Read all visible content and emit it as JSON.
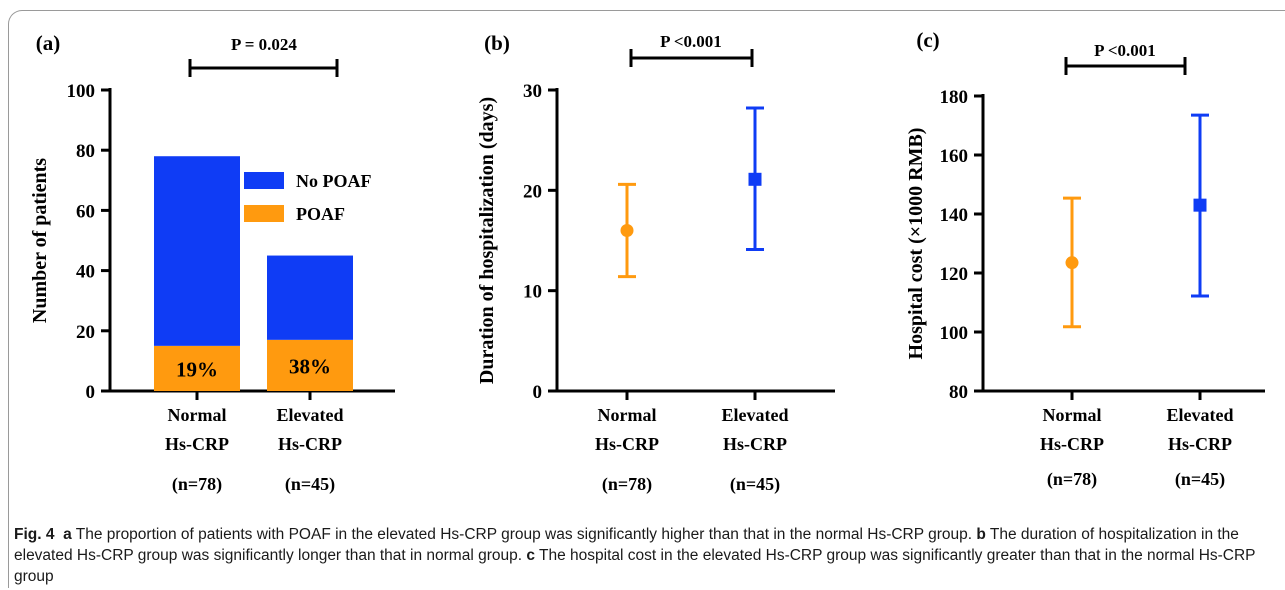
{
  "colors": {
    "blue": "#0f3cf5",
    "orange": "#ff9a0f",
    "frame": "#9a9a9a"
  },
  "chart_data": [
    {
      "type": "bar",
      "stacked": true,
      "panel_label": "(a)",
      "pvalue": "P = 0.024",
      "ylabel": "Number of  patients",
      "ylim": [
        0,
        100
      ],
      "yticks": [
        0,
        20,
        40,
        60,
        80,
        100
      ],
      "categories": [
        [
          "Normal",
          "Hs-CRP",
          "(n=78)"
        ],
        [
          "Elevated",
          "Hs-CRP",
          "(n=45)"
        ]
      ],
      "series": [
        {
          "name": "POAF",
          "values": [
            15,
            17
          ],
          "labels": [
            "19%",
            "38%"
          ],
          "color": "#ff9a0f"
        },
        {
          "name": "No POAF",
          "values": [
            63,
            28
          ],
          "color": "#0f3cf5"
        }
      ],
      "legend": "top-right"
    },
    {
      "type": "scatter",
      "errorbars": true,
      "panel_label": "(b)",
      "pvalue": "P <0.001",
      "ylabel": "Duration of hospitalization (days)",
      "ylim": [
        0,
        30
      ],
      "yticks": [
        0,
        10,
        20,
        30
      ],
      "categories": [
        [
          "Normal",
          "Hs-CRP",
          "(n=78)"
        ],
        [
          "Elevated",
          "Hs-CRP",
          "(n=45)"
        ]
      ],
      "points": [
        {
          "mean": 16.0,
          "low": 11.4,
          "high": 20.6,
          "marker": "circle",
          "color": "#ff9a0f"
        },
        {
          "mean": 21.1,
          "low": 14.1,
          "high": 28.2,
          "marker": "square",
          "color": "#0f3cf5"
        }
      ]
    },
    {
      "type": "scatter",
      "errorbars": true,
      "panel_label": "(c)",
      "pvalue": "P <0.001",
      "ylabel": "Hospital cost (×1000 RMB)",
      "ylim": [
        80,
        180
      ],
      "yticks": [
        80,
        100,
        120,
        140,
        160,
        180
      ],
      "categories": [
        [
          "Normal",
          "Hs-CRP",
          "(n=78)"
        ],
        [
          "Elevated",
          "Hs-CRP",
          "(n=45)"
        ]
      ],
      "points": [
        {
          "mean": 123.5,
          "low": 101.8,
          "high": 145.4,
          "marker": "circle",
          "color": "#ff9a0f"
        },
        {
          "mean": 143.0,
          "low": 112.2,
          "high": 173.5,
          "marker": "square",
          "color": "#0f3cf5"
        }
      ]
    }
  ],
  "caption": {
    "fig": "Fig. 4",
    "a_label": "a",
    "a_text": "The proportion of patients with POAF in the elevated Hs-CRP group was significantly higher than that in the normal Hs-CRP group.",
    "b_label": "b",
    "b_text": "The duration of hospitalization in the elevated Hs-CRP group was significantly longer than that in normal group.",
    "c_label": "c",
    "c_text": "The hospital cost in the elevated Hs-CRP group was significantly greater than that in the normal Hs-CRP group"
  }
}
